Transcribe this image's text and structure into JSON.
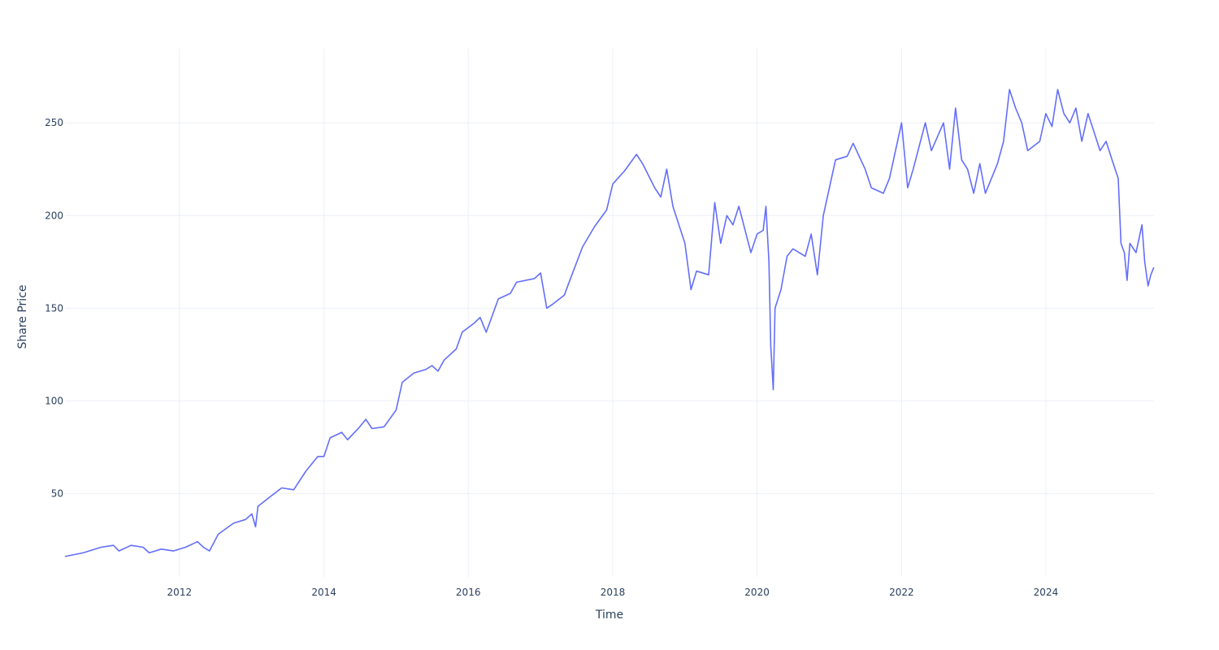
{
  "chart_data": {
    "type": "line",
    "title": "",
    "xlabel": "Time",
    "ylabel": "Share Price",
    "xlim": [
      "2010-06-01",
      "2025-07-01"
    ],
    "ylim": [
      5,
      290
    ],
    "x_ticks": [
      "2012",
      "2014",
      "2016",
      "2018",
      "2020",
      "2022",
      "2024"
    ],
    "y_ticks": [
      50,
      100,
      150,
      200,
      250
    ],
    "grid": true,
    "legend": "none",
    "line_color": "#636efa",
    "series": [
      {
        "points": [
          [
            "2010-06-01",
            16
          ],
          [
            "2010-09-01",
            18
          ],
          [
            "2010-12-01",
            21
          ],
          [
            "2011-02-01",
            22
          ],
          [
            "2011-03-01",
            19
          ],
          [
            "2011-05-01",
            22
          ],
          [
            "2011-07-01",
            21
          ],
          [
            "2011-08-01",
            18
          ],
          [
            "2011-10-01",
            20
          ],
          [
            "2011-12-01",
            19
          ],
          [
            "2012-02-01",
            21
          ],
          [
            "2012-04-01",
            24
          ],
          [
            "2012-05-01",
            21
          ],
          [
            "2012-06-01",
            19
          ],
          [
            "2012-07-15",
            28
          ],
          [
            "2012-10-01",
            34
          ],
          [
            "2012-12-01",
            36
          ],
          [
            "2013-01-01",
            39
          ],
          [
            "2013-01-20",
            32
          ],
          [
            "2013-02-01",
            43
          ],
          [
            "2013-04-01",
            48
          ],
          [
            "2013-06-01",
            53
          ],
          [
            "2013-08-01",
            52
          ],
          [
            "2013-10-01",
            62
          ],
          [
            "2013-12-01",
            70
          ],
          [
            "2014-01-01",
            70
          ],
          [
            "2014-02-01",
            80
          ],
          [
            "2014-04-01",
            83
          ],
          [
            "2014-05-01",
            79
          ],
          [
            "2014-07-01",
            86
          ],
          [
            "2014-08-01",
            90
          ],
          [
            "2014-09-01",
            85
          ],
          [
            "2014-11-01",
            86
          ],
          [
            "2015-01-01",
            95
          ],
          [
            "2015-02-01",
            110
          ],
          [
            "2015-04-01",
            115
          ],
          [
            "2015-06-01",
            117
          ],
          [
            "2015-07-01",
            119
          ],
          [
            "2015-08-01",
            116
          ],
          [
            "2015-09-01",
            122
          ],
          [
            "2015-11-01",
            128
          ],
          [
            "2015-12-01",
            137
          ],
          [
            "2016-02-01",
            142
          ],
          [
            "2016-03-01",
            145
          ],
          [
            "2016-04-01",
            137
          ],
          [
            "2016-06-01",
            155
          ],
          [
            "2016-08-01",
            158
          ],
          [
            "2016-09-01",
            164
          ],
          [
            "2016-12-01",
            166
          ],
          [
            "2017-01-01",
            169
          ],
          [
            "2017-02-01",
            150
          ],
          [
            "2017-03-01",
            152
          ],
          [
            "2017-05-01",
            157
          ],
          [
            "2017-06-01",
            166
          ],
          [
            "2017-08-01",
            183
          ],
          [
            "2017-10-01",
            194
          ],
          [
            "2017-12-01",
            203
          ],
          [
            "2018-01-01",
            217
          ],
          [
            "2018-03-01",
            224
          ],
          [
            "2018-05-01",
            233
          ],
          [
            "2018-06-01",
            228
          ],
          [
            "2018-08-01",
            215
          ],
          [
            "2018-09-01",
            210
          ],
          [
            "2018-10-01",
            225
          ],
          [
            "2018-11-01",
            205
          ],
          [
            "2019-01-01",
            185
          ],
          [
            "2019-02-01",
            160
          ],
          [
            "2019-03-01",
            170
          ],
          [
            "2019-05-01",
            168
          ],
          [
            "2019-06-01",
            207
          ],
          [
            "2019-07-01",
            185
          ],
          [
            "2019-08-01",
            200
          ],
          [
            "2019-09-01",
            195
          ],
          [
            "2019-10-01",
            205
          ],
          [
            "2019-12-01",
            180
          ],
          [
            "2020-01-01",
            190
          ],
          [
            "2020-02-01",
            192
          ],
          [
            "2020-02-15",
            205
          ],
          [
            "2020-03-01",
            175
          ],
          [
            "2020-03-10",
            130
          ],
          [
            "2020-03-23",
            106
          ],
          [
            "2020-04-01",
            150
          ],
          [
            "2020-05-01",
            160
          ],
          [
            "2020-06-01",
            178
          ],
          [
            "2020-07-01",
            182
          ],
          [
            "2020-09-01",
            178
          ],
          [
            "2020-10-01",
            190
          ],
          [
            "2020-11-01",
            168
          ],
          [
            "2020-12-01",
            200
          ],
          [
            "2021-01-01",
            215
          ],
          [
            "2021-02-01",
            230
          ],
          [
            "2021-04-01",
            232
          ],
          [
            "2021-05-01",
            239
          ],
          [
            "2021-07-01",
            225
          ],
          [
            "2021-08-01",
            215
          ],
          [
            "2021-10-01",
            212
          ],
          [
            "2021-11-01",
            220
          ],
          [
            "2022-01-01",
            250
          ],
          [
            "2022-02-01",
            215
          ],
          [
            "2022-03-01",
            225
          ],
          [
            "2022-05-01",
            250
          ],
          [
            "2022-06-01",
            235
          ],
          [
            "2022-08-01",
            250
          ],
          [
            "2022-09-01",
            225
          ],
          [
            "2022-10-01",
            258
          ],
          [
            "2022-11-01",
            230
          ],
          [
            "2022-12-01",
            225
          ],
          [
            "2023-01-01",
            212
          ],
          [
            "2023-02-01",
            228
          ],
          [
            "2023-03-01",
            212
          ],
          [
            "2023-05-01",
            228
          ],
          [
            "2023-06-01",
            240
          ],
          [
            "2023-07-01",
            268
          ],
          [
            "2023-08-01",
            258
          ],
          [
            "2023-09-01",
            250
          ],
          [
            "2023-10-01",
            235
          ],
          [
            "2023-12-01",
            240
          ],
          [
            "2024-01-01",
            255
          ],
          [
            "2024-02-01",
            248
          ],
          [
            "2024-03-01",
            268
          ],
          [
            "2024-04-01",
            255
          ],
          [
            "2024-05-01",
            250
          ],
          [
            "2024-06-01",
            258
          ],
          [
            "2024-07-01",
            240
          ],
          [
            "2024-08-01",
            255
          ],
          [
            "2024-09-01",
            245
          ],
          [
            "2024-10-01",
            235
          ],
          [
            "2024-11-01",
            240
          ],
          [
            "2024-12-01",
            230
          ],
          [
            "2025-01-01",
            220
          ],
          [
            "2025-01-15",
            185
          ],
          [
            "2025-02-01",
            180
          ],
          [
            "2025-02-15",
            165
          ],
          [
            "2025-03-01",
            185
          ],
          [
            "2025-04-01",
            180
          ],
          [
            "2025-05-01",
            195
          ],
          [
            "2025-05-15",
            175
          ],
          [
            "2025-06-01",
            162
          ],
          [
            "2025-06-15",
            168
          ],
          [
            "2025-06-30",
            172
          ]
        ]
      }
    ]
  }
}
